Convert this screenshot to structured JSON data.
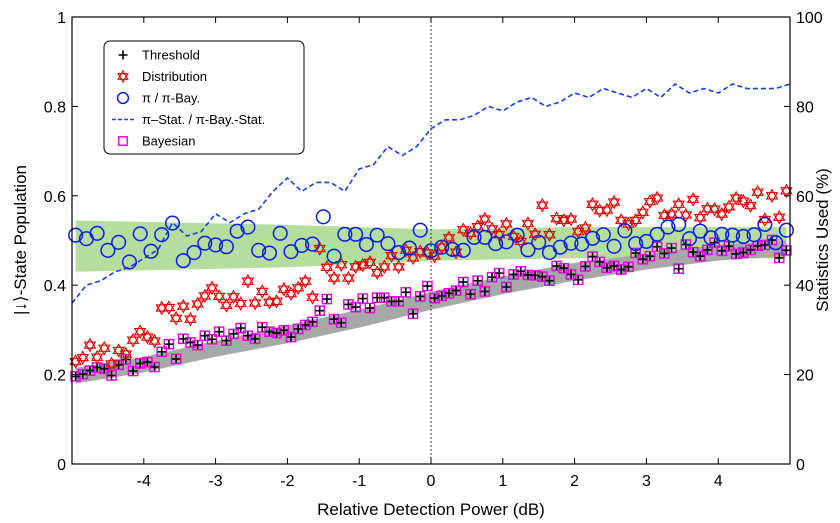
{
  "chart_data": {
    "type": "scatter",
    "xlabel": "Relative Detection Power (dB)",
    "ylabel_left": "|↓⟩-State Population",
    "ylabel_right": "Statistics Used (%)",
    "xlim": [
      -5,
      5
    ],
    "ylim_left": [
      0,
      1
    ],
    "ylim_right": [
      0,
      100
    ],
    "x_ticks": [
      "-4",
      "-3",
      "-2",
      "-1",
      "0",
      "1",
      "2",
      "3",
      "4"
    ],
    "y_ticks_left": [
      "0",
      "0.2",
      "0.4",
      "0.6",
      "0.8",
      "1"
    ],
    "y_ticks_right": [
      "0",
      "20",
      "40",
      "60",
      "80",
      "100"
    ],
    "grid": false,
    "vertical_reference_line_x": 0,
    "legend_position": "top-left",
    "legend": [
      {
        "label": "Threshold",
        "marker": "plus",
        "color": "#000000"
      },
      {
        "label": "Distribution",
        "marker": "hexagram",
        "color": "#e00000"
      },
      {
        "label": "π / π-Bay.",
        "marker": "circle",
        "color": "#0a1ee6"
      },
      {
        "label": "π–Stat. / π-Bay.-Stat.",
        "marker": "dashed-line",
        "color": "#1a3ee8"
      },
      {
        "label": "Bayesian",
        "marker": "square",
        "color": "#e000e0"
      }
    ],
    "bands": [
      {
        "name": "green-band",
        "color": "#b5dd9d",
        "x": [
          -4.95,
          -2,
          0,
          2,
          4.95
        ],
        "lower": [
          0.43,
          0.44,
          0.455,
          0.46,
          0.46
        ],
        "upper": [
          0.545,
          0.535,
          0.525,
          0.53,
          0.53
        ]
      },
      {
        "name": "gray-band",
        "color": "#a8a8a8",
        "x": [
          -4.95,
          -4,
          -3,
          -2,
          -1,
          0,
          1,
          2,
          3,
          4,
          4.95
        ],
        "lower": [
          0.18,
          0.205,
          0.24,
          0.27,
          0.305,
          0.345,
          0.38,
          0.41,
          0.435,
          0.455,
          0.465
        ],
        "upper": [
          0.215,
          0.24,
          0.275,
          0.31,
          0.345,
          0.385,
          0.42,
          0.45,
          0.47,
          0.49,
          0.5
        ]
      }
    ],
    "series": [
      {
        "name": "Threshold",
        "marker": "plus",
        "color": "#000000",
        "x": [
          -4.95,
          -4.85,
          -4.75,
          -4.65,
          -4.55,
          -4.45,
          -4.35,
          -4.25,
          -4.15,
          -4.05,
          -3.95,
          -3.85,
          -3.75,
          -3.65,
          -3.55,
          -3.45,
          -3.35,
          -3.25,
          -3.15,
          -3.05,
          -2.95,
          -2.85,
          -2.75,
          -2.65,
          -2.55,
          -2.45,
          -2.35,
          -2.25,
          -2.15,
          -2.05,
          -1.95,
          -1.85,
          -1.75,
          -1.65,
          -1.55,
          -1.45,
          -1.35,
          -1.25,
          -1.15,
          -1.05,
          -0.95,
          -0.85,
          -0.75,
          -0.65,
          -0.55,
          -0.45,
          -0.35,
          -0.25,
          -0.15,
          -0.05,
          0.05,
          0.15,
          0.25,
          0.35,
          0.45,
          0.55,
          0.65,
          0.75,
          0.85,
          0.95,
          1.05,
          1.15,
          1.25,
          1.35,
          1.45,
          1.55,
          1.65,
          1.75,
          1.85,
          1.95,
          2.05,
          2.15,
          2.25,
          2.35,
          2.45,
          2.55,
          2.65,
          2.75,
          2.85,
          2.95,
          3.05,
          3.15,
          3.25,
          3.35,
          3.45,
          3.55,
          3.65,
          3.75,
          3.85,
          3.95,
          4.05,
          4.15,
          4.25,
          4.35,
          4.45,
          4.55,
          4.65,
          4.75,
          4.85,
          4.95
        ],
        "y": [
          0.196,
          0.201,
          0.209,
          0.216,
          0.213,
          0.198,
          0.222,
          0.234,
          0.208,
          0.225,
          0.228,
          0.217,
          0.251,
          0.268,
          0.235,
          0.28,
          0.272,
          0.266,
          0.287,
          0.279,
          0.296,
          0.276,
          0.291,
          0.304,
          0.287,
          0.28,
          0.306,
          0.296,
          0.293,
          0.299,
          0.284,
          0.302,
          0.311,
          0.318,
          0.343,
          0.369,
          0.324,
          0.316,
          0.357,
          0.351,
          0.37,
          0.349,
          0.372,
          0.372,
          0.364,
          0.364,
          0.384,
          0.336,
          0.375,
          0.398,
          0.371,
          0.376,
          0.382,
          0.388,
          0.407,
          0.38,
          0.41,
          0.386,
          0.418,
          0.427,
          0.396,
          0.424,
          0.431,
          0.423,
          0.422,
          0.419,
          0.41,
          0.443,
          0.438,
          0.424,
          0.412,
          0.442,
          0.464,
          0.452,
          0.439,
          0.443,
          0.435,
          0.441,
          0.472,
          0.458,
          0.465,
          0.486,
          0.471,
          0.483,
          0.437,
          0.491,
          0.474,
          0.465,
          0.479,
          0.495,
          0.477,
          0.487,
          0.47,
          0.473,
          0.479,
          0.488,
          0.49,
          0.501,
          0.461,
          0.478
        ]
      },
      {
        "name": "Bayesian",
        "marker": "square",
        "color": "#e000e0",
        "same_points_as": "Threshold"
      },
      {
        "name": "Distribution",
        "marker": "hexagram",
        "color": "#e00000",
        "x": [
          -4.95,
          -4.85,
          -4.75,
          -4.65,
          -4.55,
          -4.45,
          -4.35,
          -4.25,
          -4.15,
          -4.05,
          -3.95,
          -3.85,
          -3.75,
          -3.65,
          -3.55,
          -3.45,
          -3.35,
          -3.25,
          -3.15,
          -3.05,
          -2.95,
          -2.85,
          -2.75,
          -2.65,
          -2.55,
          -2.45,
          -2.35,
          -2.25,
          -2.15,
          -2.05,
          -1.95,
          -1.85,
          -1.75,
          -1.65,
          -1.55,
          -1.45,
          -1.35,
          -1.25,
          -1.15,
          -1.05,
          -0.95,
          -0.85,
          -0.75,
          -0.65,
          -0.55,
          -0.45,
          -0.35,
          -0.25,
          -0.15,
          -0.05,
          0.05,
          0.15,
          0.25,
          0.35,
          0.45,
          0.55,
          0.65,
          0.75,
          0.85,
          0.95,
          1.05,
          1.15,
          1.25,
          1.35,
          1.45,
          1.55,
          1.65,
          1.75,
          1.85,
          1.95,
          2.05,
          2.15,
          2.25,
          2.35,
          2.45,
          2.55,
          2.65,
          2.75,
          2.85,
          2.95,
          3.05,
          3.15,
          3.25,
          3.35,
          3.45,
          3.55,
          3.65,
          3.75,
          3.85,
          3.95,
          4.05,
          4.15,
          4.25,
          4.35,
          4.45,
          4.55,
          4.65,
          4.75,
          4.85,
          4.95
        ],
        "y": [
          0.229,
          0.238,
          0.266,
          0.239,
          0.259,
          0.224,
          0.254,
          0.246,
          0.277,
          0.296,
          0.284,
          0.275,
          0.349,
          0.35,
          0.326,
          0.353,
          0.324,
          0.358,
          0.376,
          0.394,
          0.375,
          0.355,
          0.374,
          0.359,
          0.409,
          0.36,
          0.386,
          0.362,
          0.364,
          0.391,
          0.381,
          0.394,
          0.409,
          0.373,
          0.482,
          0.44,
          0.416,
          0.446,
          0.416,
          0.441,
          0.445,
          0.451,
          0.428,
          0.441,
          0.466,
          0.441,
          0.478,
          0.461,
          0.475,
          0.472,
          0.465,
          0.485,
          0.506,
          0.474,
          0.524,
          0.516,
          0.531,
          0.548,
          0.526,
          0.513,
          0.537,
          0.509,
          0.498,
          0.538,
          0.514,
          0.579,
          0.513,
          0.549,
          0.545,
          0.548,
          0.52,
          0.528,
          0.581,
          0.567,
          0.568,
          0.586,
          0.545,
          0.537,
          0.545,
          0.563,
          0.587,
          0.595,
          0.556,
          0.559,
          0.581,
          0.557,
          0.592,
          0.551,
          0.571,
          0.57,
          0.559,
          0.575,
          0.595,
          0.588,
          0.578,
          0.608,
          0.547,
          0.6,
          0.552,
          0.611
        ]
      },
      {
        "name": "π / π-Bay.",
        "marker": "circle",
        "color": "#0a1ee6",
        "x": [
          -4.95,
          -4.8,
          -4.65,
          -4.5,
          -4.35,
          -4.2,
          -4.05,
          -3.9,
          -3.75,
          -3.6,
          -3.45,
          -3.3,
          -3.15,
          -3.0,
          -2.85,
          -2.7,
          -2.55,
          -2.4,
          -2.25,
          -2.1,
          -1.95,
          -1.8,
          -1.65,
          -1.5,
          -1.35,
          -1.2,
          -1.05,
          -0.9,
          -0.75,
          -0.6,
          -0.45,
          -0.3,
          -0.15,
          0.0,
          0.15,
          0.3,
          0.45,
          0.6,
          0.75,
          0.9,
          1.05,
          1.2,
          1.35,
          1.5,
          1.65,
          1.8,
          1.95,
          2.1,
          2.25,
          2.4,
          2.55,
          2.7,
          2.85,
          3.0,
          3.15,
          3.3,
          3.45,
          3.6,
          3.75,
          3.9,
          4.05,
          4.2,
          4.35,
          4.5,
          4.65,
          4.8,
          4.95
        ],
        "y": [
          0.512,
          0.504,
          0.516,
          0.478,
          0.496,
          0.452,
          0.515,
          0.476,
          0.513,
          0.539,
          0.455,
          0.473,
          0.494,
          0.49,
          0.486,
          0.521,
          0.53,
          0.478,
          0.472,
          0.516,
          0.475,
          0.489,
          0.492,
          0.553,
          0.465,
          0.514,
          0.514,
          0.491,
          0.512,
          0.493,
          0.473,
          0.483,
          0.523,
          0.477,
          0.485,
          0.48,
          0.478,
          0.507,
          0.507,
          0.493,
          0.497,
          0.512,
          0.479,
          0.496,
          0.473,
          0.485,
          0.494,
          0.492,
          0.505,
          0.513,
          0.487,
          0.522,
          0.493,
          0.498,
          0.514,
          0.53,
          0.536,
          0.504,
          0.521,
          0.506,
          0.514,
          0.512,
          0.509,
          0.513,
          0.536,
          0.495,
          0.523
        ]
      },
      {
        "name": "π–Stat. / π-Bay.-Stat.",
        "axis": "right",
        "marker": "dashed-line",
        "color": "#1a3ee8",
        "x": [
          -5,
          -4.8,
          -4.6,
          -4.4,
          -4.2,
          -4.0,
          -3.8,
          -3.6,
          -3.4,
          -3.2,
          -3.0,
          -2.8,
          -2.6,
          -2.4,
          -2.2,
          -2.0,
          -1.8,
          -1.6,
          -1.4,
          -1.2,
          -1.0,
          -0.8,
          -0.6,
          -0.4,
          -0.2,
          0.0,
          0.2,
          0.4,
          0.6,
          0.8,
          1.0,
          1.2,
          1.4,
          1.6,
          1.8,
          2.0,
          2.2,
          2.4,
          2.6,
          2.8,
          3.0,
          3.2,
          3.4,
          3.6,
          3.8,
          4.0,
          4.2,
          4.4,
          4.6,
          4.8,
          5.0
        ],
        "y": [
          36,
          40,
          41,
          43,
          44,
          46,
          48,
          54,
          51,
          52,
          56,
          54,
          56,
          57,
          61,
          64,
          61,
          63,
          63,
          61,
          66,
          67,
          71,
          69,
          71,
          75,
          77,
          77,
          78,
          80,
          79,
          81,
          82,
          80,
          81,
          83,
          82,
          84,
          83,
          82,
          84,
          82,
          85,
          83,
          84,
          83,
          85,
          84,
          84,
          84,
          85
        ]
      }
    ]
  }
}
